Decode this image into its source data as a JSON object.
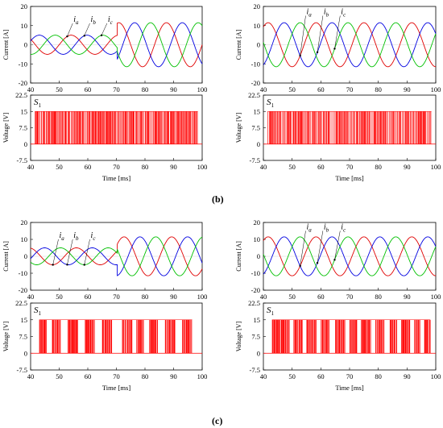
{
  "panel_labels": [
    "(b)",
    "(c)"
  ],
  "colors": {
    "ia": "#e00000",
    "ib": "#0000e0",
    "ic": "#00c000",
    "pwm": "#ff0000"
  },
  "chart_data": [
    {
      "type": "line",
      "panel": "(b)",
      "position": "top-left",
      "ylabel": "Current [A]",
      "xlabel": "",
      "xlim": [
        40,
        100
      ],
      "ylim": [
        -20,
        20
      ],
      "xticks": [
        40,
        50,
        60,
        70,
        80,
        90,
        100
      ],
      "yticks": [
        -20,
        -10,
        0,
        10,
        20
      ],
      "grid": false,
      "annotations": [
        {
          "sub": "a",
          "x": 55,
          "y": 12
        },
        {
          "sub": "b",
          "x": 61,
          "y": 12
        },
        {
          "sub": "c",
          "x": 67,
          "y": 12
        }
      ],
      "series": [
        {
          "name": "ia",
          "color": "#e00000",
          "segments": [
            {
              "t0": 40,
              "t1": 70.3,
              "amp": 5,
              "freq": 0.06,
              "phase": 0
            },
            {
              "t0": 70.3,
              "t1": 100,
              "amp": 11.5,
              "freq": 0.06,
              "phase": 0
            }
          ]
        },
        {
          "name": "ib",
          "color": "#0000e0",
          "segments": [
            {
              "t0": 40,
              "t1": 70.3,
              "amp": 5,
              "freq": 0.06,
              "phase": -120
            },
            {
              "t0": 70.3,
              "t1": 100,
              "amp": 11.5,
              "freq": 0.06,
              "phase": -120
            }
          ]
        },
        {
          "name": "ic",
          "color": "#00c000",
          "segments": [
            {
              "t0": 40,
              "t1": 70.3,
              "amp": 5,
              "freq": 0.06,
              "phase": 120
            },
            {
              "t0": 70.3,
              "t1": 100,
              "amp": 11.5,
              "freq": 0.06,
              "phase": 120
            }
          ]
        }
      ]
    },
    {
      "type": "line",
      "panel": "(b)",
      "position": "top-right",
      "ylabel": "Current [A]",
      "xlabel": "",
      "xlim": [
        40,
        100
      ],
      "ylim": [
        -20,
        20
      ],
      "xticks": [
        40,
        50,
        60,
        70,
        80,
        90,
        100
      ],
      "yticks": [
        -20,
        -10,
        0,
        10,
        20
      ],
      "grid": false,
      "annotations": [
        {
          "sub": "a",
          "x": 55,
          "y": 16
        },
        {
          "sub": "b",
          "x": 61,
          "y": 16
        },
        {
          "sub": "c",
          "x": 67,
          "y": 16
        }
      ],
      "series": [
        {
          "name": "ia",
          "color": "#e00000",
          "segments": [
            {
              "t0": 40,
              "t1": 100,
              "amp": 11.5,
              "freq": 0.06,
              "phase": -90
            }
          ]
        },
        {
          "name": "ib",
          "color": "#0000e0",
          "segments": [
            {
              "t0": 40,
              "t1": 100,
              "amp": 11.5,
              "freq": 0.06,
              "phase": 150
            }
          ]
        },
        {
          "name": "ic",
          "color": "#00c000",
          "segments": [
            {
              "t0": 40,
              "t1": 100,
              "amp": 11.5,
              "freq": 0.06,
              "phase": 30
            }
          ]
        }
      ]
    },
    {
      "type": "area",
      "panel": "(b)",
      "position": "bottom-left",
      "signal_label": "S1",
      "ylabel": "Voltage [V]",
      "xlabel": "Time [ms]",
      "xlim": [
        40,
        100
      ],
      "ylim": [
        -7.5,
        22.5
      ],
      "xticks": [
        40,
        50,
        60,
        70,
        80,
        90,
        100
      ],
      "yticks": [
        -7.5,
        0,
        7.5,
        15,
        22.5
      ],
      "high_value": 15,
      "low_value": 0,
      "pulse_start": 41.5,
      "pulse_end": 98.5,
      "duty_mean": 0.62,
      "period": 0.55,
      "seed": 11,
      "grid": false
    },
    {
      "type": "area",
      "panel": "(b)",
      "position": "bottom-right",
      "signal_label": "S1",
      "ylabel": "Voltage [V]",
      "xlabel": "Time [ms]",
      "xlim": [
        40,
        100
      ],
      "ylim": [
        -7.5,
        22.5
      ],
      "xticks": [
        40,
        50,
        60,
        70,
        80,
        90,
        100
      ],
      "yticks": [
        -7.5,
        0,
        7.5,
        15,
        22.5
      ],
      "high_value": 15,
      "low_value": 0,
      "pulse_start": 41.5,
      "pulse_end": 98.5,
      "duty_mean": 0.55,
      "period": 0.55,
      "seed": 23,
      "grid": false
    },
    {
      "type": "line",
      "panel": "(c)",
      "position": "top-left",
      "ylabel": "Current [A]",
      "xlabel": "",
      "xlim": [
        40,
        100
      ],
      "ylim": [
        -20,
        20
      ],
      "xticks": [
        40,
        50,
        60,
        70,
        80,
        90,
        100
      ],
      "yticks": [
        -20,
        -10,
        0,
        10,
        20
      ],
      "grid": false,
      "annotations": [
        {
          "sub": "a",
          "x": 50,
          "y": 11
        },
        {
          "sub": "b",
          "x": 55,
          "y": 11
        },
        {
          "sub": "c",
          "x": 61,
          "y": 11
        }
      ],
      "series": [
        {
          "name": "ia",
          "color": "#e00000",
          "segments": [
            {
              "t0": 40,
              "t1": 70.3,
              "amp": 5,
              "freq": 0.06,
              "phase": -40
            },
            {
              "t0": 70.3,
              "t1": 100,
              "amp": 11.5,
              "freq": 0.06,
              "phase": -40
            }
          ]
        },
        {
          "name": "ib",
          "color": "#0000e0",
          "segments": [
            {
              "t0": 40,
              "t1": 70.3,
              "amp": 5,
              "freq": 0.06,
              "phase": -160
            },
            {
              "t0": 70.3,
              "t1": 100,
              "amp": 11.5,
              "freq": 0.06,
              "phase": -160
            }
          ]
        },
        {
          "name": "ic",
          "color": "#00c000",
          "segments": [
            {
              "t0": 40,
              "t1": 70.3,
              "amp": 5,
              "freq": 0.06,
              "phase": 80
            },
            {
              "t0": 70.3,
              "t1": 100,
              "amp": 11.5,
              "freq": 0.06,
              "phase": 80
            }
          ]
        }
      ]
    },
    {
      "type": "line",
      "panel": "(c)",
      "position": "top-right",
      "ylabel": "Current [A]",
      "xlabel": "",
      "xlim": [
        40,
        100
      ],
      "ylim": [
        -20,
        20
      ],
      "xticks": [
        40,
        50,
        60,
        70,
        80,
        90,
        100
      ],
      "yticks": [
        -20,
        -10,
        0,
        10,
        20
      ],
      "grid": false,
      "annotations": [
        {
          "sub": "a",
          "x": 55,
          "y": 16
        },
        {
          "sub": "b",
          "x": 61,
          "y": 16
        },
        {
          "sub": "c",
          "x": 67,
          "y": 16
        }
      ],
      "series": [
        {
          "name": "ia",
          "color": "#e00000",
          "segments": [
            {
              "t0": 40,
              "t1": 100,
              "amp": 11.5,
              "freq": 0.06,
              "phase": -90
            }
          ]
        },
        {
          "name": "ib",
          "color": "#0000e0",
          "segments": [
            {
              "t0": 40,
              "t1": 100,
              "amp": 11.5,
              "freq": 0.06,
              "phase": 150
            }
          ]
        },
        {
          "name": "ic",
          "color": "#00c000",
          "segments": [
            {
              "t0": 40,
              "t1": 100,
              "amp": 11.5,
              "freq": 0.06,
              "phase": 30
            }
          ]
        }
      ]
    },
    {
      "type": "area",
      "panel": "(c)",
      "position": "bottom-left",
      "signal_label": "S1",
      "ylabel": "Voltage [V]",
      "xlabel": "Time [ms]",
      "xlim": [
        40,
        100
      ],
      "ylim": [
        -7.5,
        22.5
      ],
      "xticks": [
        40,
        50,
        60,
        70,
        80,
        90,
        100
      ],
      "yticks": [
        -7.5,
        0,
        7.5,
        15,
        22.5
      ],
      "high_value": 15,
      "low_value": 0,
      "pulse_groups": [
        [
          43,
          45.5
        ],
        [
          47.5,
          50.5
        ],
        [
          53,
          56.5
        ],
        [
          59,
          62.5
        ],
        [
          65,
          68.5
        ],
        [
          72,
          75.5
        ],
        [
          77,
          79.5
        ],
        [
          81.5,
          84.5
        ],
        [
          87,
          90.5
        ],
        [
          93,
          96.5
        ]
      ],
      "grid": false
    },
    {
      "type": "area",
      "panel": "(c)",
      "position": "bottom-right",
      "signal_label": "S1",
      "ylabel": "Voltage [V]",
      "xlabel": "Time [ms]",
      "xlim": [
        40,
        100
      ],
      "ylim": [
        -7.5,
        22.5
      ],
      "xticks": [
        40,
        50,
        60,
        70,
        80,
        90,
        100
      ],
      "yticks": [
        -7.5,
        0,
        7.5,
        15,
        22.5
      ],
      "high_value": 15,
      "low_value": 0,
      "pulse_groups": [
        [
          43,
          49
        ],
        [
          50.5,
          53.5
        ],
        [
          55,
          58.5
        ],
        [
          60,
          63
        ],
        [
          65,
          68.5
        ],
        [
          70,
          72.5
        ],
        [
          74,
          77.5
        ],
        [
          79,
          82
        ],
        [
          84,
          86.5
        ],
        [
          88,
          91
        ],
        [
          92.5,
          94.5
        ],
        [
          96,
          98
        ]
      ],
      "grid": false
    }
  ]
}
